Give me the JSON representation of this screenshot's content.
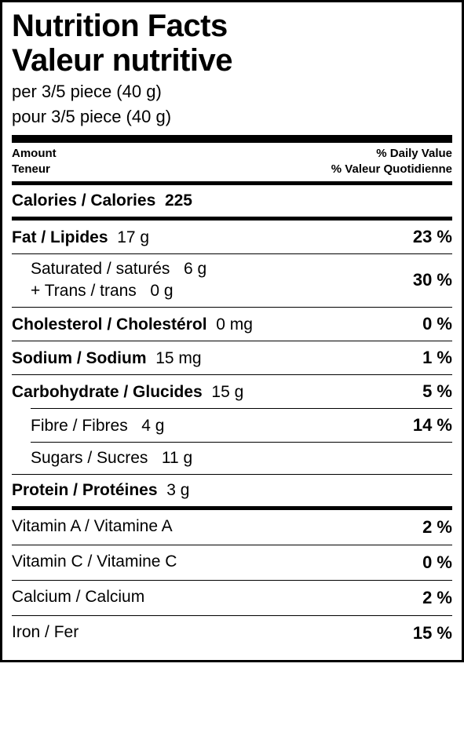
{
  "title_en": "Nutrition Facts",
  "title_fr": "Valeur nutritive",
  "serving_en": "per 3/5 piece (40 g)",
  "serving_fr": "pour 3/5 piece (40 g)",
  "header": {
    "amount_en": "Amount",
    "amount_fr": "Teneur",
    "dv_en": "% Daily Value",
    "dv_fr": "% Valeur Quotidienne"
  },
  "calories": {
    "label": "Calories / Calories",
    "value": "225"
  },
  "fat": {
    "label": "Fat / Lipides",
    "value": "17 g",
    "dv": "23 %"
  },
  "sat": {
    "label": "Saturated / saturés",
    "value": "6 g"
  },
  "trans": {
    "label": "+ Trans / trans",
    "value": "0 g"
  },
  "sat_trans_dv": "30 %",
  "chol": {
    "label": "Cholesterol / Cholestérol",
    "value": "0 mg",
    "dv": "0 %"
  },
  "sodium": {
    "label": "Sodium / Sodium",
    "value": "15 mg",
    "dv": "1 %"
  },
  "carb": {
    "label": "Carbohydrate / Glucides",
    "value": "15 g",
    "dv": "5 %"
  },
  "fibre": {
    "label": "Fibre / Fibres",
    "value": "4 g",
    "dv": "14 %"
  },
  "sugars": {
    "label": "Sugars / Sucres",
    "value": "11 g"
  },
  "protein": {
    "label": "Protein / Protéines",
    "value": "3 g"
  },
  "vitA": {
    "label": "Vitamin A / Vitamine A",
    "dv": "2 %"
  },
  "vitC": {
    "label": "Vitamin C / Vitamine C",
    "dv": "0 %"
  },
  "calcium": {
    "label": "Calcium / Calcium",
    "dv": "2 %"
  },
  "iron": {
    "label": "Iron / Fer",
    "dv": "15 %"
  }
}
